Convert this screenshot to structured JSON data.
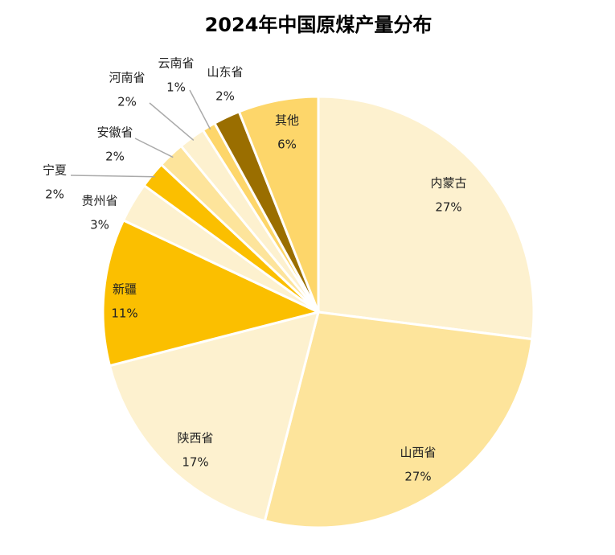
{
  "chart_data": {
    "type": "pie",
    "title": "2024年中国原煤产量分布",
    "categories": [
      "内蒙古",
      "山西省",
      "陕西省",
      "新疆",
      "贵州省",
      "宁夏",
      "安徽省",
      "河南省",
      "云南省",
      "山东省",
      "其他"
    ],
    "values": [
      27,
      27,
      17,
      11,
      3,
      2,
      2,
      2,
      1,
      2,
      6
    ],
    "value_labels": [
      "27%",
      "27%",
      "17%",
      "11%",
      "3%",
      "2%",
      "2%",
      "2%",
      "1%",
      "2%",
      "6%"
    ],
    "colors": [
      "#fdf1cf",
      "#fde49b",
      "#fdf1cf",
      "#fbbf00",
      "#fdf1cf",
      "#fbbf00",
      "#fde49b",
      "#fdf1cf",
      "#fdd66a",
      "#9a6e00",
      "#fdd66a"
    ]
  }
}
